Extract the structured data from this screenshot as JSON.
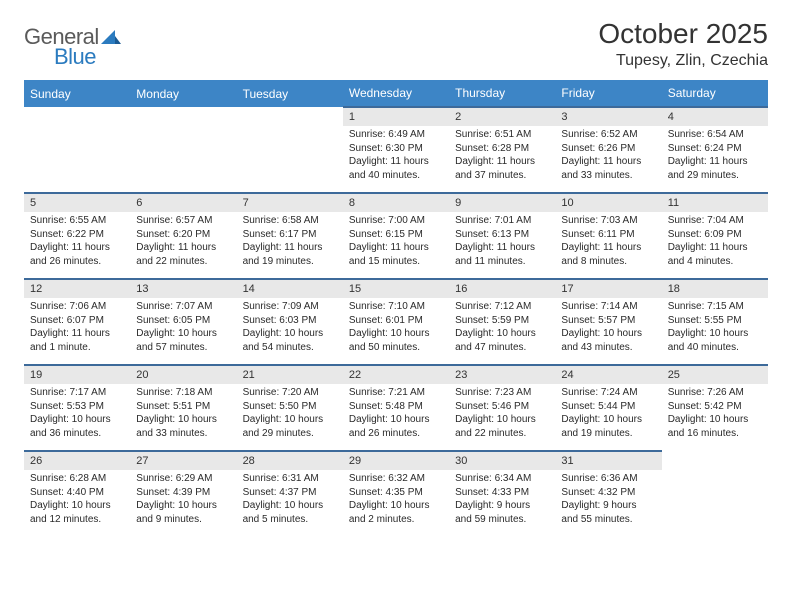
{
  "logo": {
    "word1": "General",
    "word2": "Blue"
  },
  "title": "October 2025",
  "location": "Tupesy, Zlin, Czechia",
  "colors": {
    "header_bg": "#3d85c6",
    "header_text": "#ffffff",
    "date_bg": "#e8e8e8",
    "date_border": "#3d6a9a",
    "body_text": "#2a2a2a",
    "logo_dark": "#5a5a5a",
    "logo_blue": "#2b7bbf"
  },
  "fonts": {
    "title_size_pt": 21,
    "location_size_pt": 12,
    "dayheader_size_pt": 9,
    "date_size_pt": 8,
    "detail_size_pt": 7.5
  },
  "day_headers": [
    "Sunday",
    "Monday",
    "Tuesday",
    "Wednesday",
    "Thursday",
    "Friday",
    "Saturday"
  ],
  "weeks": [
    [
      {
        "date": "",
        "sunrise": "",
        "sunset": "",
        "daylight": ""
      },
      {
        "date": "",
        "sunrise": "",
        "sunset": "",
        "daylight": ""
      },
      {
        "date": "",
        "sunrise": "",
        "sunset": "",
        "daylight": ""
      },
      {
        "date": "1",
        "sunrise": "Sunrise: 6:49 AM",
        "sunset": "Sunset: 6:30 PM",
        "daylight": "Daylight: 11 hours and 40 minutes."
      },
      {
        "date": "2",
        "sunrise": "Sunrise: 6:51 AM",
        "sunset": "Sunset: 6:28 PM",
        "daylight": "Daylight: 11 hours and 37 minutes."
      },
      {
        "date": "3",
        "sunrise": "Sunrise: 6:52 AM",
        "sunset": "Sunset: 6:26 PM",
        "daylight": "Daylight: 11 hours and 33 minutes."
      },
      {
        "date": "4",
        "sunrise": "Sunrise: 6:54 AM",
        "sunset": "Sunset: 6:24 PM",
        "daylight": "Daylight: 11 hours and 29 minutes."
      }
    ],
    [
      {
        "date": "5",
        "sunrise": "Sunrise: 6:55 AM",
        "sunset": "Sunset: 6:22 PM",
        "daylight": "Daylight: 11 hours and 26 minutes."
      },
      {
        "date": "6",
        "sunrise": "Sunrise: 6:57 AM",
        "sunset": "Sunset: 6:20 PM",
        "daylight": "Daylight: 11 hours and 22 minutes."
      },
      {
        "date": "7",
        "sunrise": "Sunrise: 6:58 AM",
        "sunset": "Sunset: 6:17 PM",
        "daylight": "Daylight: 11 hours and 19 minutes."
      },
      {
        "date": "8",
        "sunrise": "Sunrise: 7:00 AM",
        "sunset": "Sunset: 6:15 PM",
        "daylight": "Daylight: 11 hours and 15 minutes."
      },
      {
        "date": "9",
        "sunrise": "Sunrise: 7:01 AM",
        "sunset": "Sunset: 6:13 PM",
        "daylight": "Daylight: 11 hours and 11 minutes."
      },
      {
        "date": "10",
        "sunrise": "Sunrise: 7:03 AM",
        "sunset": "Sunset: 6:11 PM",
        "daylight": "Daylight: 11 hours and 8 minutes."
      },
      {
        "date": "11",
        "sunrise": "Sunrise: 7:04 AM",
        "sunset": "Sunset: 6:09 PM",
        "daylight": "Daylight: 11 hours and 4 minutes."
      }
    ],
    [
      {
        "date": "12",
        "sunrise": "Sunrise: 7:06 AM",
        "sunset": "Sunset: 6:07 PM",
        "daylight": "Daylight: 11 hours and 1 minute."
      },
      {
        "date": "13",
        "sunrise": "Sunrise: 7:07 AM",
        "sunset": "Sunset: 6:05 PM",
        "daylight": "Daylight: 10 hours and 57 minutes."
      },
      {
        "date": "14",
        "sunrise": "Sunrise: 7:09 AM",
        "sunset": "Sunset: 6:03 PM",
        "daylight": "Daylight: 10 hours and 54 minutes."
      },
      {
        "date": "15",
        "sunrise": "Sunrise: 7:10 AM",
        "sunset": "Sunset: 6:01 PM",
        "daylight": "Daylight: 10 hours and 50 minutes."
      },
      {
        "date": "16",
        "sunrise": "Sunrise: 7:12 AM",
        "sunset": "Sunset: 5:59 PM",
        "daylight": "Daylight: 10 hours and 47 minutes."
      },
      {
        "date": "17",
        "sunrise": "Sunrise: 7:14 AM",
        "sunset": "Sunset: 5:57 PM",
        "daylight": "Daylight: 10 hours and 43 minutes."
      },
      {
        "date": "18",
        "sunrise": "Sunrise: 7:15 AM",
        "sunset": "Sunset: 5:55 PM",
        "daylight": "Daylight: 10 hours and 40 minutes."
      }
    ],
    [
      {
        "date": "19",
        "sunrise": "Sunrise: 7:17 AM",
        "sunset": "Sunset: 5:53 PM",
        "daylight": "Daylight: 10 hours and 36 minutes."
      },
      {
        "date": "20",
        "sunrise": "Sunrise: 7:18 AM",
        "sunset": "Sunset: 5:51 PM",
        "daylight": "Daylight: 10 hours and 33 minutes."
      },
      {
        "date": "21",
        "sunrise": "Sunrise: 7:20 AM",
        "sunset": "Sunset: 5:50 PM",
        "daylight": "Daylight: 10 hours and 29 minutes."
      },
      {
        "date": "22",
        "sunrise": "Sunrise: 7:21 AM",
        "sunset": "Sunset: 5:48 PM",
        "daylight": "Daylight: 10 hours and 26 minutes."
      },
      {
        "date": "23",
        "sunrise": "Sunrise: 7:23 AM",
        "sunset": "Sunset: 5:46 PM",
        "daylight": "Daylight: 10 hours and 22 minutes."
      },
      {
        "date": "24",
        "sunrise": "Sunrise: 7:24 AM",
        "sunset": "Sunset: 5:44 PM",
        "daylight": "Daylight: 10 hours and 19 minutes."
      },
      {
        "date": "25",
        "sunrise": "Sunrise: 7:26 AM",
        "sunset": "Sunset: 5:42 PM",
        "daylight": "Daylight: 10 hours and 16 minutes."
      }
    ],
    [
      {
        "date": "26",
        "sunrise": "Sunrise: 6:28 AM",
        "sunset": "Sunset: 4:40 PM",
        "daylight": "Daylight: 10 hours and 12 minutes."
      },
      {
        "date": "27",
        "sunrise": "Sunrise: 6:29 AM",
        "sunset": "Sunset: 4:39 PM",
        "daylight": "Daylight: 10 hours and 9 minutes."
      },
      {
        "date": "28",
        "sunrise": "Sunrise: 6:31 AM",
        "sunset": "Sunset: 4:37 PM",
        "daylight": "Daylight: 10 hours and 5 minutes."
      },
      {
        "date": "29",
        "sunrise": "Sunrise: 6:32 AM",
        "sunset": "Sunset: 4:35 PM",
        "daylight": "Daylight: 10 hours and 2 minutes."
      },
      {
        "date": "30",
        "sunrise": "Sunrise: 6:34 AM",
        "sunset": "Sunset: 4:33 PM",
        "daylight": "Daylight: 9 hours and 59 minutes."
      },
      {
        "date": "31",
        "sunrise": "Sunrise: 6:36 AM",
        "sunset": "Sunset: 4:32 PM",
        "daylight": "Daylight: 9 hours and 55 minutes."
      },
      {
        "date": "",
        "sunrise": "",
        "sunset": "",
        "daylight": ""
      }
    ]
  ]
}
